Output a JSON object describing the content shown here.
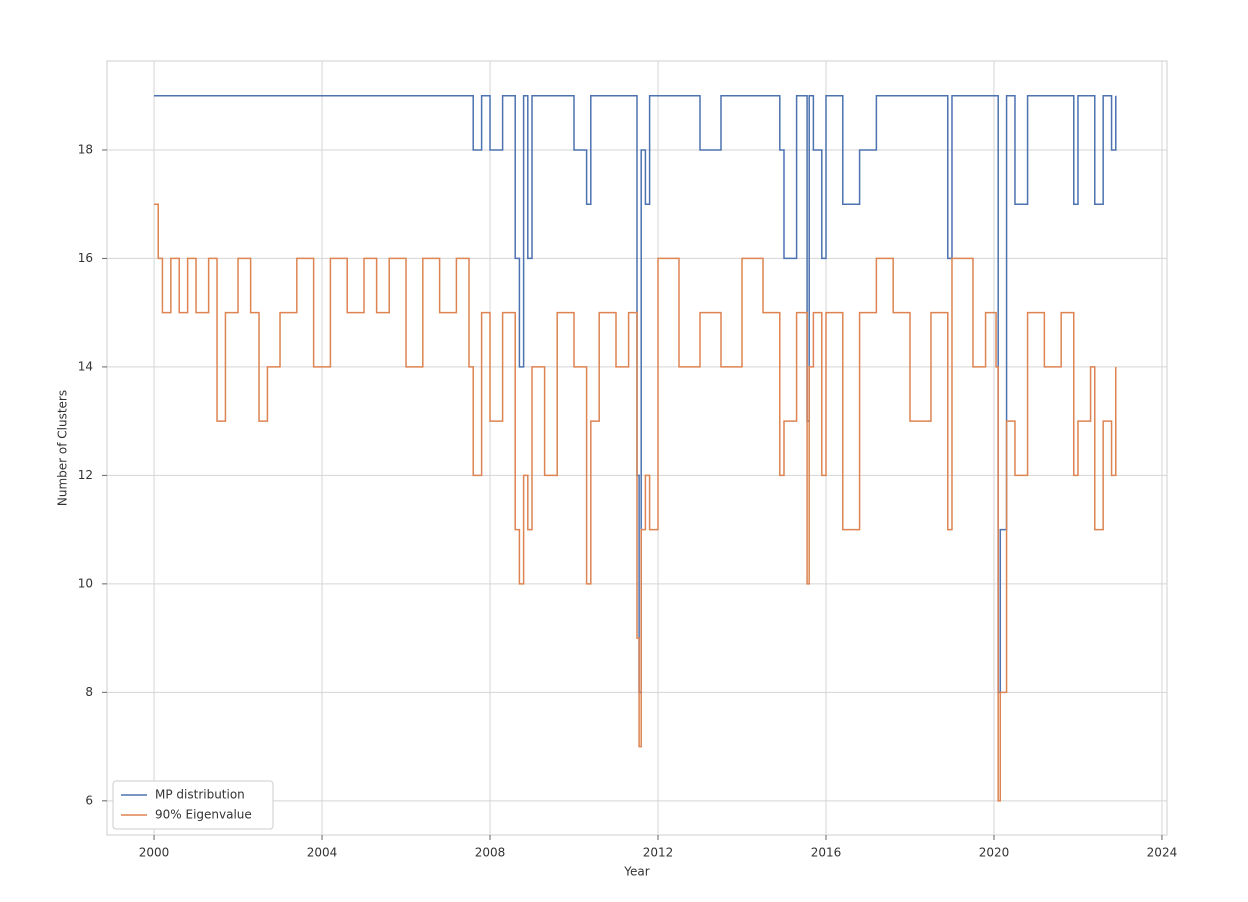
{
  "chart_data": {
    "type": "line",
    "step": true,
    "x_label": "Year",
    "y_label": "Number of Clusters",
    "x": [
      2000.0,
      2000.1,
      2000.2,
      2000.4,
      2000.6,
      2000.8,
      2001.0,
      2001.3,
      2001.5,
      2001.7,
      2002.0,
      2002.3,
      2002.5,
      2002.7,
      2003.0,
      2003.4,
      2003.8,
      2004.2,
      2004.6,
      2005.0,
      2005.3,
      2005.6,
      2006.0,
      2006.4,
      2006.8,
      2007.2,
      2007.5,
      2007.6,
      2007.8,
      2008.0,
      2008.3,
      2008.6,
      2008.7,
      2008.8,
      2008.9,
      2009.0,
      2009.3,
      2009.6,
      2010.0,
      2010.3,
      2010.4,
      2010.6,
      2011.0,
      2011.3,
      2011.5,
      2011.55,
      2011.6,
      2011.7,
      2011.8,
      2012.0,
      2012.5,
      2013.0,
      2013.5,
      2014.0,
      2014.5,
      2014.9,
      2015.0,
      2015.3,
      2015.55,
      2015.6,
      2015.7,
      2015.9,
      2016.0,
      2016.4,
      2016.8,
      2017.2,
      2017.6,
      2018.0,
      2018.5,
      2018.9,
      2019.0,
      2019.5,
      2019.8,
      2020.05,
      2020.1,
      2020.15,
      2020.3,
      2020.5,
      2020.8,
      2021.2,
      2021.6,
      2021.9,
      2022.0,
      2022.3,
      2022.4,
      2022.6,
      2022.8,
      2022.9
    ],
    "series": [
      {
        "name": "MP distribution",
        "color": "#4c72b0",
        "values": [
          19,
          19,
          19,
          19,
          19,
          19,
          19,
          19,
          19,
          19,
          19,
          19,
          19,
          19,
          19,
          19,
          19,
          19,
          19,
          19,
          19,
          19,
          19,
          19,
          19,
          19,
          19,
          18,
          19,
          18,
          19,
          16,
          14,
          19,
          16,
          19,
          19,
          19,
          18,
          17,
          19,
          19,
          19,
          19,
          12,
          8,
          18,
          17,
          19,
          19,
          19,
          18,
          19,
          19,
          19,
          18,
          16,
          19,
          13,
          19,
          18,
          16,
          19,
          17,
          18,
          19,
          19,
          19,
          19,
          16,
          19,
          19,
          19,
          19,
          8,
          11,
          19,
          17,
          19,
          19,
          19,
          17,
          19,
          19,
          17,
          19,
          18,
          19
        ]
      },
      {
        "name": "90% Eigenvalue",
        "color": "#dd8452",
        "values": [
          17,
          16,
          15,
          16,
          15,
          16,
          15,
          16,
          13,
          15,
          16,
          15,
          13,
          14,
          15,
          16,
          14,
          16,
          15,
          16,
          15,
          16,
          14,
          16,
          15,
          16,
          14,
          12,
          15,
          13,
          15,
          11,
          10,
          12,
          11,
          14,
          12,
          15,
          14,
          10,
          13,
          15,
          14,
          15,
          9,
          7,
          11,
          12,
          11,
          16,
          14,
          15,
          14,
          16,
          15,
          12,
          13,
          15,
          10,
          14,
          15,
          12,
          15,
          11,
          15,
          16,
          15,
          13,
          15,
          11,
          16,
          14,
          15,
          14,
          6,
          8,
          13,
          12,
          15,
          14,
          15,
          12,
          13,
          14,
          11,
          13,
          12,
          14
        ]
      }
    ],
    "xlim": [
      1998.88,
      2024.12
    ],
    "ylim": [
      5.37,
      19.64
    ],
    "xticks": [
      2000,
      2004,
      2008,
      2012,
      2016,
      2020,
      2024
    ],
    "yticks": [
      6,
      8,
      10,
      12,
      14,
      16,
      18
    ],
    "grid": true,
    "legend": "lower left"
  }
}
